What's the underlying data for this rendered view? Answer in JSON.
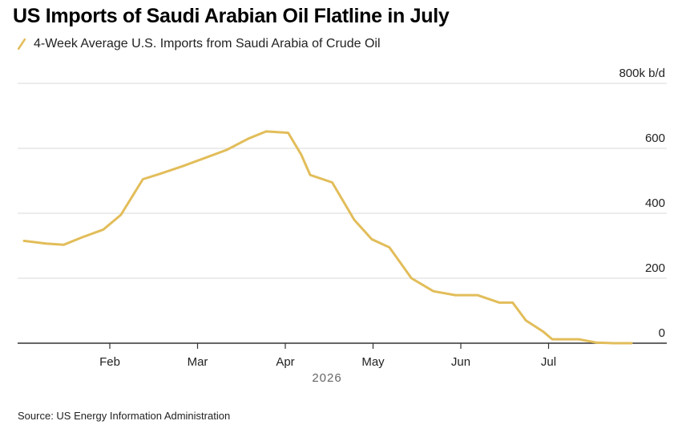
{
  "header": {
    "title": "US Imports of Saudi Arabian Oil Flatline in July"
  },
  "source": "Source: US Energy Information Administration",
  "colors": {
    "line": "#e2bd5a",
    "grid": "#d9d9d9",
    "axis": "#333333"
  },
  "chart_data": {
    "type": "line",
    "title": "US Imports of Saudi Arabian Oil Flatline in July",
    "xlabel": "2026",
    "ylabel": "",
    "y_unit_label": "800k b/d",
    "ylim": [
      0,
      800
    ],
    "y_ticks": [
      0,
      200,
      400,
      600
    ],
    "grid": true,
    "legend_position": "top-left",
    "x_tick_labels": [
      {
        "label": "Feb",
        "month_index": 1
      },
      {
        "label": "Mar",
        "month_index": 2
      },
      {
        "label": "Apr",
        "month_index": 3
      },
      {
        "label": "May",
        "month_index": 4
      },
      {
        "label": "Jun",
        "month_index": 5
      },
      {
        "label": "Jul",
        "month_index": 6
      }
    ],
    "xlim_months": [
      0.05,
      7.0
    ],
    "series": [
      {
        "name": "4-Week Average U.S. Imports from Saudi Arabia of Crude Oil",
        "x_months": [
          0.05,
          0.3,
          0.5,
          0.7,
          0.95,
          1.15,
          1.4,
          1.6,
          1.85,
          2.1,
          2.35,
          2.6,
          2.8,
          3.05,
          3.2,
          3.3,
          3.55,
          3.8,
          4.0,
          4.2,
          4.45,
          4.7,
          4.95,
          5.2,
          5.45,
          5.6,
          5.75,
          5.95,
          6.05,
          6.35,
          6.55,
          6.75,
          6.95
        ],
        "values": [
          315,
          307,
          303,
          325,
          350,
          395,
          505,
          522,
          545,
          570,
          595,
          630,
          652,
          648,
          580,
          518,
          495,
          380,
          320,
          295,
          200,
          160,
          148,
          148,
          125,
          125,
          70,
          35,
          12,
          12,
          2,
          0,
          0
        ]
      }
    ]
  }
}
